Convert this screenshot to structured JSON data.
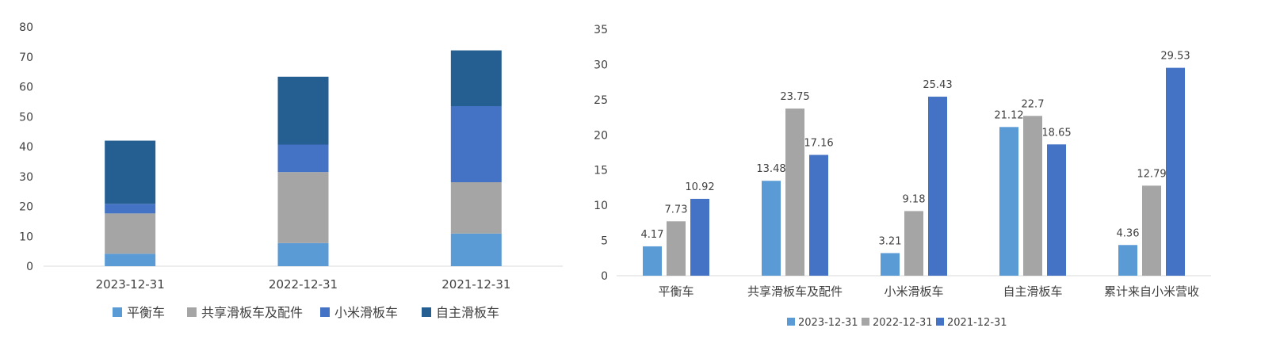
{
  "chart_data": [
    {
      "type": "bar",
      "stacked": true,
      "categories": [
        "2023-12-31",
        "2022-12-31",
        "2021-12-31"
      ],
      "series": [
        {
          "name": "平衡车",
          "color": "#5B9BD5",
          "values": [
            4.17,
            7.73,
            10.92
          ]
        },
        {
          "name": "共享滑板车及配件",
          "color": "#A5A5A5",
          "values": [
            13.48,
            23.75,
            17.16
          ]
        },
        {
          "name": "小米滑板车",
          "color": "#4472C4",
          "values": [
            3.21,
            9.18,
            25.43
          ]
        },
        {
          "name": "自主滑板车",
          "color": "#255E91",
          "values": [
            21.12,
            22.7,
            18.65
          ]
        }
      ],
      "ylim": [
        0,
        80
      ],
      "yticks": [
        "0",
        "10",
        "20",
        "30",
        "40",
        "50",
        "60",
        "70",
        "80"
      ],
      "grid": false,
      "legend_position": "bottom"
    },
    {
      "type": "bar",
      "stacked": false,
      "categories": [
        "平衡车",
        "共享滑板车及配件",
        "小米滑板车",
        "自主滑板车",
        "累计来自小米营收"
      ],
      "series": [
        {
          "name": "2023-12-31",
          "color": "#5B9BD5",
          "values": [
            4.17,
            13.48,
            3.21,
            21.12,
            4.36
          ],
          "labels": [
            "4.17",
            "13.48",
            "3.21",
            "21.12",
            "4.36"
          ]
        },
        {
          "name": "2022-12-31",
          "color": "#A5A5A5",
          "values": [
            7.73,
            23.75,
            9.18,
            22.7,
            12.79
          ],
          "labels": [
            "7.73",
            "23.75",
            "9.18",
            "22.7",
            "12.79"
          ]
        },
        {
          "name": "2021-12-31",
          "color": "#4472C4",
          "values": [
            10.92,
            17.16,
            25.43,
            18.65,
            29.53
          ],
          "labels": [
            "10.92",
            "17.16",
            "25.43",
            "18.65",
            "29.53"
          ]
        }
      ],
      "ylim": [
        0,
        35
      ],
      "yticks": [
        "0",
        "5",
        "10",
        "15",
        "20",
        "25",
        "30",
        "35"
      ],
      "grid": false,
      "legend_position": "bottom"
    }
  ]
}
